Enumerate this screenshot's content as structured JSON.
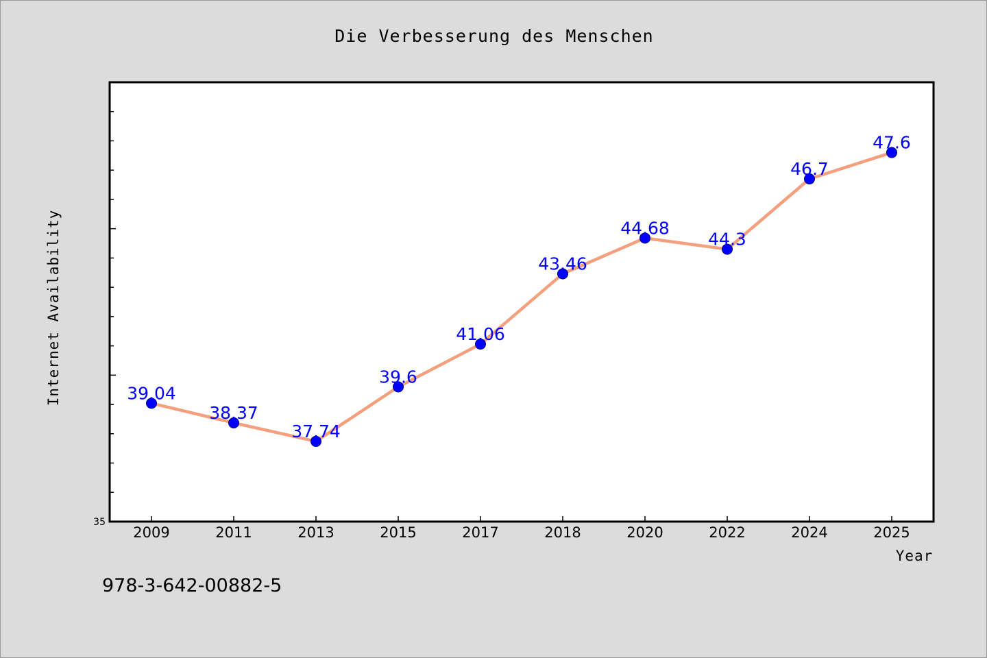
{
  "footer": {
    "isbn": "978-3-642-00882-5"
  },
  "colors": {
    "background": "#dcdcdc",
    "plot_background": "#ffffff",
    "line": "#f4a07f",
    "marker": "#0000ff",
    "data_label": "#0000ff"
  },
  "chart_data": {
    "type": "line",
    "title": "Die Verbesserung des Menschen",
    "xlabel": "Year",
    "ylabel": "Internet Availability",
    "categories": [
      "2009",
      "2011",
      "2013",
      "2015",
      "2017",
      "2018",
      "2020",
      "2022",
      "2024",
      "2025"
    ],
    "series": [
      {
        "values": [
          39.04,
          38.37,
          37.74,
          39.6,
          41.06,
          43.46,
          44.68,
          44.3,
          46.7,
          47.6
        ]
      }
    ],
    "data_labels": [
      "39.04",
      "38.37",
      "37.74",
      "39.6",
      "41.06",
      "43.46",
      "44.68",
      "44.3",
      "46.7",
      "47.6"
    ],
    "ylim": [
      35,
      50
    ],
    "y_tick_labels": [
      "35"
    ],
    "grid": false,
    "legend": "none"
  }
}
